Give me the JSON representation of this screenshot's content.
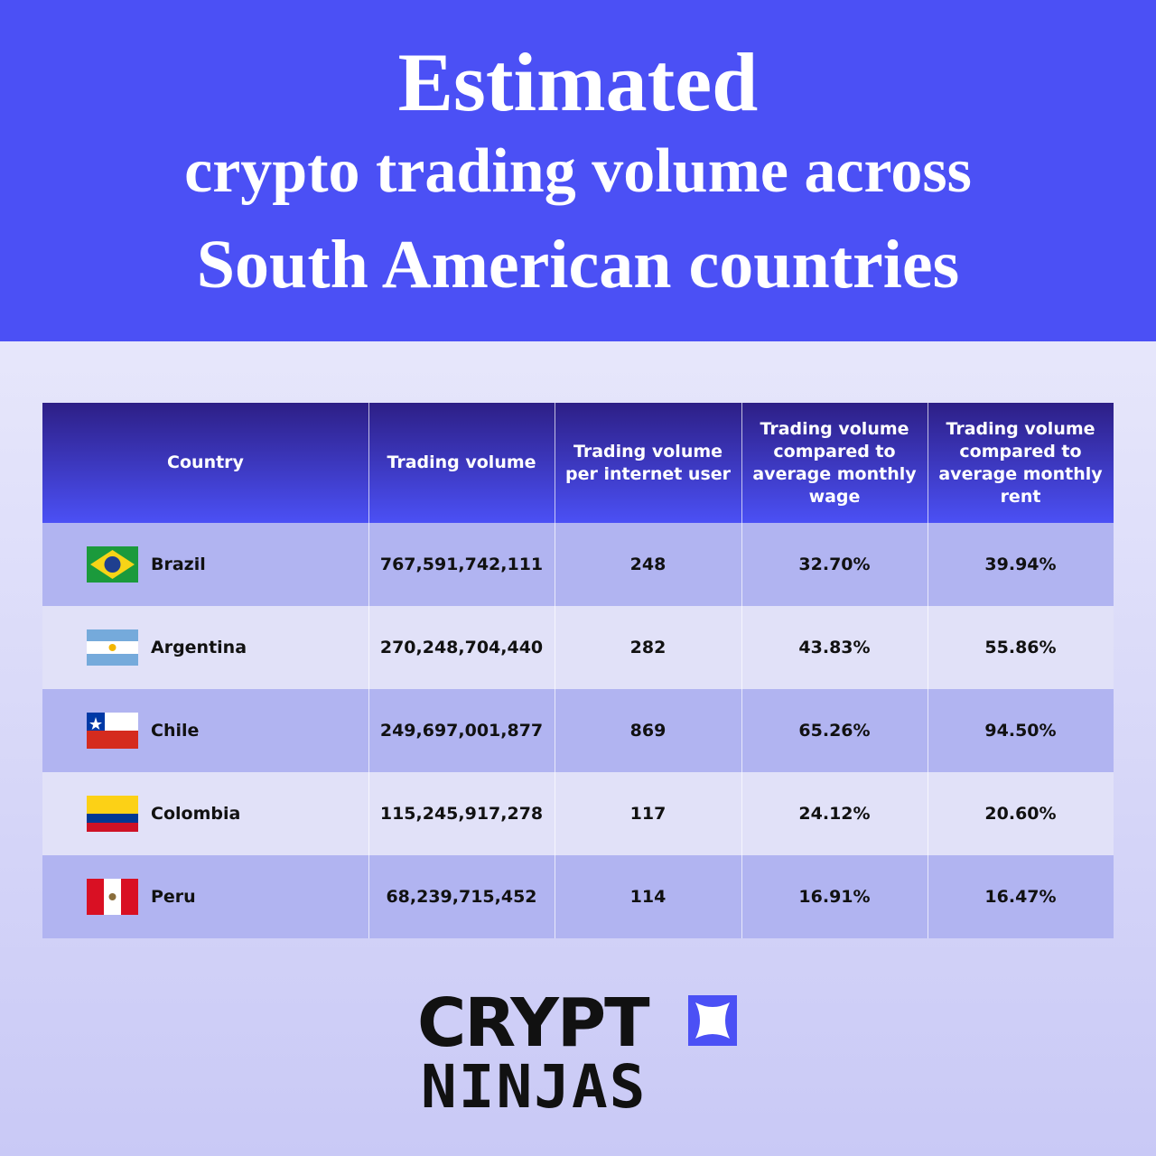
{
  "header": {
    "title": [
      "Estimated",
      "crypto trading volume across",
      "South American countries"
    ]
  },
  "table": {
    "columns": [
      "Country",
      "Trading volume",
      "Trading volume per internet user",
      "Trading volume compared to average monthly wage",
      "Trading volume compared to average monthly rent"
    ],
    "rows": [
      [
        "Brazil",
        "767,591,742,111",
        "248",
        "32.70%",
        "39.94%"
      ],
      [
        "Argentina",
        "270,248,704,440",
        "282",
        "43.83%",
        "55.86%"
      ],
      [
        "Chile",
        "249,697,001,877",
        "869",
        "65.26%",
        "94.50%"
      ],
      [
        "Colombia",
        "115,245,917,278",
        "117",
        "24.12%",
        "20.60%"
      ],
      [
        "Peru",
        "68,239,715,452",
        "114",
        "16.91%",
        "16.47%"
      ]
    ]
  },
  "logo": {
    "line1": "CRYPT",
    "line2": "NINJAS"
  }
}
